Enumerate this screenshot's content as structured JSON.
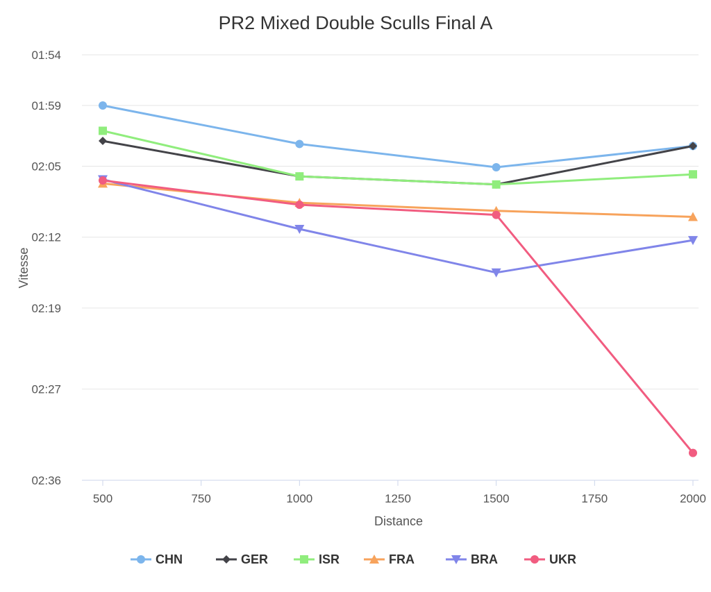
{
  "chart_data": {
    "type": "line",
    "title": "PR2 Mixed Double Sculls Final A",
    "xlabel": "Distance",
    "ylabel": "Vitesse",
    "x_ticks": [
      500,
      750,
      1000,
      1250,
      1500,
      1750,
      2000
    ],
    "x_tick_labels": [
      "500",
      "750",
      "1000",
      "1250",
      "1500",
      "1750",
      "2000"
    ],
    "xlim": [
      500,
      2000
    ],
    "y_ticks_seconds": [
      114,
      119,
      125,
      132,
      139,
      147,
      156
    ],
    "y_tick_labels": [
      "01:54",
      "01:59",
      "02:05",
      "02:12",
      "02:19",
      "02:27",
      "02:36"
    ],
    "y_reversed": true,
    "y_unit": "mm:ss (seconds per 500m)",
    "grid": true,
    "legend_position": "bottom-center",
    "x": [
      500,
      1000,
      1500,
      2000
    ],
    "series": [
      {
        "name": "CHN",
        "color": "#7cb5ec",
        "marker": "circle",
        "values": [
          119.0,
          122.8,
          125.1,
          123.0
        ]
      },
      {
        "name": "GER",
        "color": "#434348",
        "marker": "diamond",
        "values": [
          122.5,
          126.0,
          126.8,
          123.0
        ]
      },
      {
        "name": "ISR",
        "color": "#90ed7d",
        "marker": "square",
        "values": [
          121.5,
          126.0,
          126.8,
          125.8
        ]
      },
      {
        "name": "FRA",
        "color": "#f7a35c",
        "marker": "triangle",
        "values": [
          126.7,
          128.6,
          129.4,
          130.0
        ]
      },
      {
        "name": "BRA",
        "color": "#8085e9",
        "marker": "triangle-down",
        "values": [
          126.3,
          131.2,
          135.5,
          132.3
        ]
      },
      {
        "name": "UKR",
        "color": "#f15c80",
        "marker": "circle",
        "values": [
          126.4,
          128.8,
          129.8,
          153.3
        ]
      }
    ]
  }
}
